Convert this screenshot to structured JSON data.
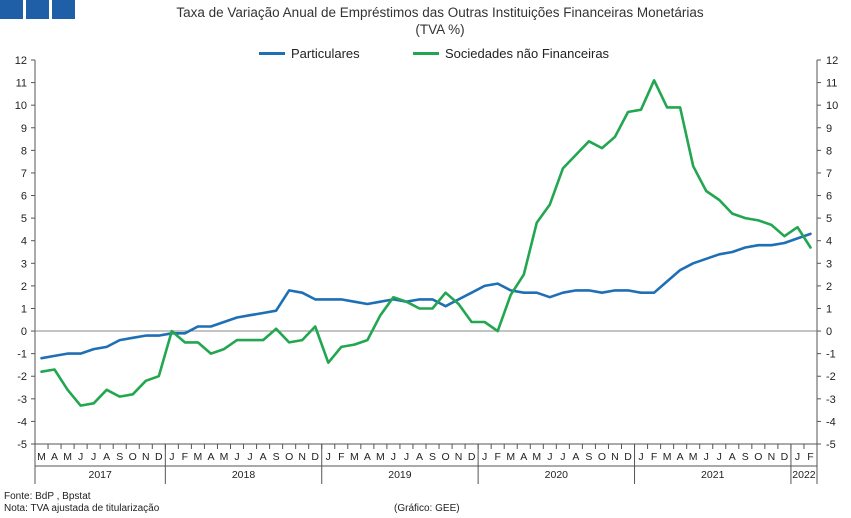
{
  "colors": {
    "logo": "#1f5fa8",
    "series_particulares": "#1f6fb5",
    "series_snf": "#22a650",
    "axis": "#555555"
  },
  "header": {
    "title_line1": "Taxa de Variação Anual de Empréstimos das Outras Instituições Financeiras Monetárias",
    "title_line2": "(TVA %)"
  },
  "footer": {
    "source": "Fonte: BdP , Bpstat",
    "note": "Nota: TVA ajustada de titularização",
    "credit": "(Gráfico: GEE)"
  },
  "chart_data": {
    "type": "line",
    "title": "Taxa de Variação Anual de Empréstimos das Outras Instituições Financeiras Monetárias (TVA %)",
    "ylim": [
      -5,
      12
    ],
    "yticks": [
      "-5",
      "-4",
      "-3",
      "-2",
      "-1",
      "0",
      "1",
      "2",
      "3",
      "4",
      "5",
      "6",
      "7",
      "8",
      "9",
      "10",
      "11",
      "12"
    ],
    "grid": false,
    "legend_position": "top-center",
    "x": [
      "2017-03",
      "2017-04",
      "2017-05",
      "2017-06",
      "2017-07",
      "2017-08",
      "2017-09",
      "2017-10",
      "2017-11",
      "2017-12",
      "2018-01",
      "2018-02",
      "2018-03",
      "2018-04",
      "2018-05",
      "2018-06",
      "2018-07",
      "2018-08",
      "2018-09",
      "2018-10",
      "2018-11",
      "2018-12",
      "2019-01",
      "2019-02",
      "2019-03",
      "2019-04",
      "2019-05",
      "2019-06",
      "2019-07",
      "2019-08",
      "2019-09",
      "2019-10",
      "2019-11",
      "2019-12",
      "2020-01",
      "2020-02",
      "2020-03",
      "2020-04",
      "2020-05",
      "2020-06",
      "2020-07",
      "2020-08",
      "2020-09",
      "2020-10",
      "2020-11",
      "2020-12",
      "2021-01",
      "2021-02",
      "2021-03",
      "2021-04",
      "2021-05",
      "2021-06",
      "2021-07",
      "2021-08",
      "2021-09",
      "2021-10",
      "2021-11",
      "2021-12",
      "2022-01",
      "2022-02"
    ],
    "month_letters": [
      "M",
      "A",
      "M",
      "J",
      "J",
      "A",
      "S",
      "O",
      "N",
      "D",
      "J",
      "F",
      "M",
      "A",
      "M",
      "J",
      "J",
      "A",
      "S",
      "O",
      "N",
      "D",
      "J",
      "F",
      "M",
      "A",
      "M",
      "J",
      "J",
      "A",
      "S",
      "O",
      "N",
      "D",
      "J",
      "F",
      "M",
      "A",
      "M",
      "J",
      "J",
      "A",
      "S",
      "O",
      "N",
      "D",
      "J",
      "F",
      "M",
      "A",
      "M",
      "J",
      "J",
      "A",
      "S",
      "O",
      "N",
      "D",
      "J",
      "F"
    ],
    "years": [
      {
        "label": "2017",
        "start": 0,
        "end": 9
      },
      {
        "label": "2018",
        "start": 10,
        "end": 21
      },
      {
        "label": "2019",
        "start": 22,
        "end": 33
      },
      {
        "label": "2020",
        "start": 34,
        "end": 45
      },
      {
        "label": "2021",
        "start": 46,
        "end": 57
      },
      {
        "label": "2022",
        "start": 58,
        "end": 59
      }
    ],
    "series": [
      {
        "name": "Particulares",
        "values": [
          -1.2,
          -1.1,
          -1.0,
          -1.0,
          -0.8,
          -0.7,
          -0.4,
          -0.3,
          -0.2,
          -0.2,
          -0.1,
          -0.1,
          0.2,
          0.2,
          0.4,
          0.6,
          0.7,
          0.8,
          0.9,
          1.8,
          1.7,
          1.4,
          1.4,
          1.4,
          1.3,
          1.2,
          1.3,
          1.4,
          1.3,
          1.4,
          1.4,
          1.1,
          1.4,
          1.7,
          2.0,
          2.1,
          1.8,
          1.7,
          1.7,
          1.5,
          1.7,
          1.8,
          1.8,
          1.7,
          1.8,
          1.8,
          1.7,
          1.7,
          2.2,
          2.7,
          3.0,
          3.2,
          3.4,
          3.5,
          3.7,
          3.8,
          3.8,
          3.9,
          4.1,
          4.3
        ]
      },
      {
        "name": "Sociedades não Financeiras",
        "values": [
          -1.8,
          -1.7,
          -2.6,
          -3.3,
          -3.2,
          -2.6,
          -2.9,
          -2.8,
          -2.2,
          -2.0,
          0.0,
          -0.5,
          -0.5,
          -1.0,
          -0.8,
          -0.4,
          -0.4,
          -0.4,
          0.1,
          -0.5,
          -0.4,
          0.2,
          -1.4,
          -0.7,
          -0.6,
          -0.4,
          0.7,
          1.5,
          1.3,
          1.0,
          1.0,
          1.7,
          1.2,
          0.4,
          0.4,
          0.0,
          1.6,
          2.5,
          4.8,
          5.6,
          7.2,
          7.8,
          8.4,
          8.1,
          8.6,
          9.7,
          9.8,
          11.1,
          9.9,
          9.9,
          7.3,
          6.2,
          5.8,
          5.2,
          5.0,
          4.9,
          4.7,
          4.2,
          4.6,
          3.7
        ]
      }
    ]
  }
}
